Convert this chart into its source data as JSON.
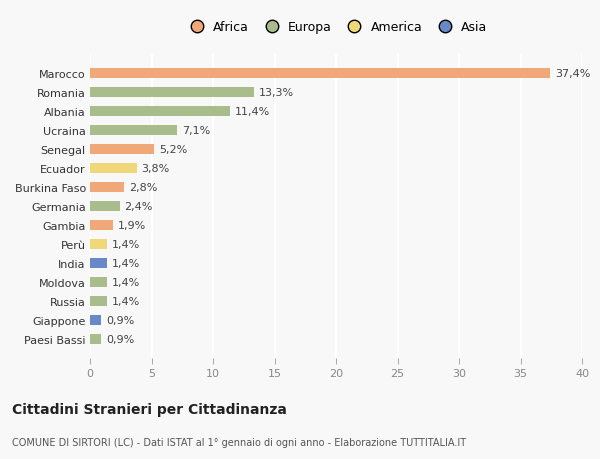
{
  "countries": [
    "Marocco",
    "Romania",
    "Albania",
    "Ucraina",
    "Senegal",
    "Ecuador",
    "Burkina Faso",
    "Germania",
    "Gambia",
    "Perù",
    "India",
    "Moldova",
    "Russia",
    "Giappone",
    "Paesi Bassi"
  ],
  "values": [
    37.4,
    13.3,
    11.4,
    7.1,
    5.2,
    3.8,
    2.8,
    2.4,
    1.9,
    1.4,
    1.4,
    1.4,
    1.4,
    0.9,
    0.9
  ],
  "labels": [
    "37,4%",
    "13,3%",
    "11,4%",
    "7,1%",
    "5,2%",
    "3,8%",
    "2,8%",
    "2,4%",
    "1,9%",
    "1,4%",
    "1,4%",
    "1,4%",
    "1,4%",
    "0,9%",
    "0,9%"
  ],
  "continents": [
    "Africa",
    "Europa",
    "Europa",
    "Europa",
    "Africa",
    "America",
    "Africa",
    "Europa",
    "Africa",
    "America",
    "Asia",
    "Europa",
    "Europa",
    "Asia",
    "Europa"
  ],
  "colors": {
    "Africa": "#F0A878",
    "Europa": "#A8BC8C",
    "America": "#F0D878",
    "Asia": "#6888C8"
  },
  "legend_order": [
    "Africa",
    "Europa",
    "America",
    "Asia"
  ],
  "legend_colors": [
    "#F0A878",
    "#A8BC8C",
    "#F0D878",
    "#6888C8"
  ],
  "xlim": [
    0,
    40
  ],
  "xticks": [
    0,
    5,
    10,
    15,
    20,
    25,
    30,
    35,
    40
  ],
  "title": "Cittadini Stranieri per Cittadinanza",
  "subtitle": "COMUNE DI SIRTORI (LC) - Dati ISTAT al 1° gennaio di ogni anno - Elaborazione TUTTITALIA.IT",
  "bg_color": "#f8f8f8",
  "bar_height": 0.55,
  "label_fontsize": 8,
  "ytick_fontsize": 8,
  "xtick_fontsize": 8
}
